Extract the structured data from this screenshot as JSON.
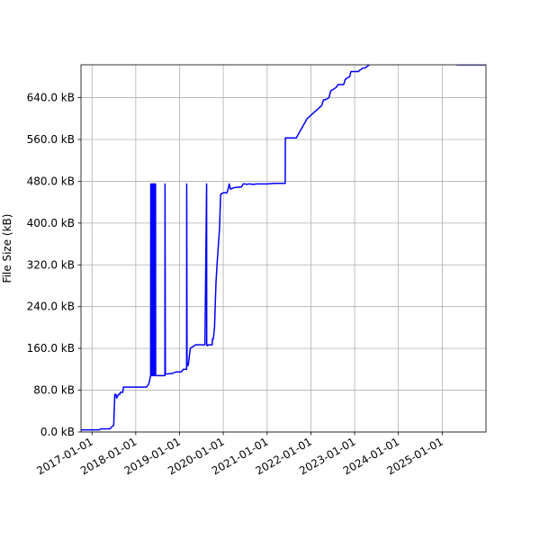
{
  "chart_data": {
    "type": "line",
    "title": "",
    "xlabel": "",
    "ylabel": "File Size (kB)",
    "grid": true,
    "legend": "none",
    "line_color": "#0000ff",
    "x_ticks": [
      "2017-01-01",
      "2018-01-01",
      "2019-01-01",
      "2020-01-01",
      "2021-01-01",
      "2022-01-01",
      "2023-01-01",
      "2024-01-01",
      "2025-01-01"
    ],
    "y_ticks": [
      {
        "value": 0,
        "label": "0.0 kB"
      },
      {
        "value": 80,
        "label": "80.0 kB"
      },
      {
        "value": 160,
        "label": "160.0 kB"
      },
      {
        "value": 240,
        "label": "240.0 kB"
      },
      {
        "value": 320,
        "label": "320.0 kB"
      },
      {
        "value": 400,
        "label": "400.0 kB"
      },
      {
        "value": 480,
        "label": "480.0 kB"
      },
      {
        "value": 560,
        "label": "560.0 kB"
      },
      {
        "value": 640,
        "label": "640.0 kB"
      }
    ],
    "xlim": [
      "2016-10-01",
      "2026-01-01"
    ],
    "ylim": [
      0,
      703
    ],
    "series": [
      {
        "x": [
          "2016-10-01",
          "2017-03-01",
          "2017-03-15",
          "2017-06-01",
          "2017-06-15",
          "2017-07-01",
          "2017-07-10",
          "2017-07-20",
          "2017-07-25",
          "2017-08-10",
          "2017-08-20",
          "2017-08-25",
          "2017-09-15",
          "2017-09-20",
          "2018-01-01",
          "2018-04-01",
          "2018-04-20",
          "2018-05-05",
          "2018-05-06",
          "2018-05-07",
          "2018-05-10",
          "2018-05-11",
          "2018-05-20",
          "2018-05-21",
          "2018-05-25",
          "2018-05-26",
          "2018-06-01",
          "2018-06-02",
          "2018-06-05",
          "2018-06-06",
          "2018-06-10",
          "2018-06-11",
          "2018-06-15",
          "2018-06-16",
          "2018-09-01",
          "2018-09-02",
          "2018-09-05",
          "2018-09-06",
          "2018-11-01",
          "2018-12-01",
          "2019-01-15",
          "2019-02-01",
          "2019-03-01",
          "2019-03-02",
          "2019-03-05",
          "2019-03-06",
          "2019-03-15",
          "2019-04-01",
          "2019-05-15",
          "2019-06-01",
          "2019-08-01",
          "2019-08-15",
          "2019-08-16",
          "2019-08-20",
          "2019-08-21",
          "2019-09-01",
          "2019-10-01",
          "2019-10-02",
          "2019-10-10",
          "2019-10-20",
          "2019-11-01",
          "2019-11-10",
          "2019-12-01",
          "2019-12-10",
          "2020-01-01",
          "2020-01-10",
          "2020-02-01",
          "2020-02-10",
          "2020-02-20",
          "2020-03-01",
          "2020-04-01",
          "2020-06-01",
          "2020-06-15",
          "2020-07-01",
          "2020-07-15",
          "2020-08-01",
          "2020-09-15",
          "2020-10-01",
          "2021-01-01",
          "2021-03-01",
          "2021-06-01",
          "2021-06-02",
          "2021-09-01",
          "2021-12-01",
          "2022-04-01",
          "2022-04-15",
          "2022-04-16",
          "2022-05-01",
          "2022-06-01",
          "2022-06-15",
          "2022-07-15",
          "2022-08-01",
          "2022-08-15",
          "2022-09-01",
          "2022-10-01",
          "2022-10-15",
          "2022-11-01",
          "2022-11-20",
          "2022-12-01",
          "2023-01-01",
          "2023-02-01",
          "2023-02-15",
          "2023-03-01",
          "2023-03-15",
          "2023-04-01",
          "2023-05-01",
          "2023-06-01",
          "2023-07-01",
          "2023-09-01",
          "2023-09-15",
          "2023-10-01",
          "2023-10-15",
          "2023-11-01",
          "2023-11-10",
          "2024-01-01",
          "2024-02-01",
          "2025-05-01",
          "2025-05-02",
          "2026-01-01"
        ],
        "y": [
          4,
          4,
          6,
          6,
          10,
          13,
          72,
          72,
          65,
          72,
          72,
          76,
          76,
          86,
          86,
          86,
          92,
          108,
          475,
          108,
          475,
          108,
          475,
          108,
          475,
          108,
          475,
          108,
          475,
          108,
          475,
          108,
          475,
          108,
          108,
          475,
          111,
          111,
          112,
          115,
          115,
          120,
          120,
          475,
          126,
          126,
          128,
          160,
          167,
          167,
          167,
          475,
          167,
          167,
          165,
          167,
          167,
          178,
          178,
          200,
          285,
          320,
          390,
          455,
          458,
          458,
          458,
          465,
          475,
          465,
          468,
          469,
          475,
          475,
          474,
          475,
          474,
          475,
          475,
          476,
          476,
          563,
          563,
          600,
          625,
          635,
          636,
          636,
          640,
          653,
          657,
          660,
          665,
          665,
          665,
          675,
          678,
          680,
          690,
          690,
          690,
          693,
          695,
          697,
          697,
          703,
          707,
          709,
          709,
          710,
          710,
          711,
          711,
          712,
          712,
          712,
          713,
          703,
          703
        ]
      }
    ]
  }
}
